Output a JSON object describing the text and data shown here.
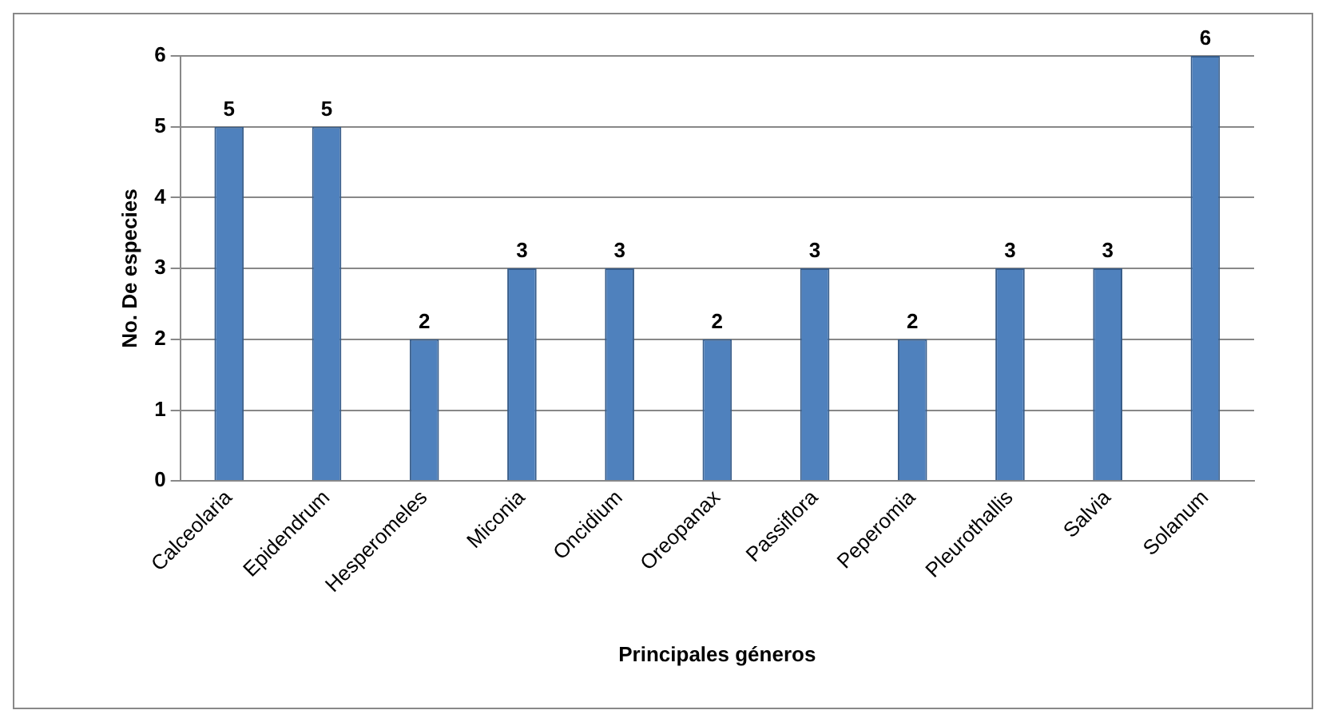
{
  "chart_data": {
    "type": "bar",
    "xlabel": "Principales géneros",
    "ylabel": "No. De especies",
    "categories": [
      "Calceolaria",
      "Epidendrum",
      "Hesperomeles",
      "Miconia",
      "Oncidium",
      "Oreopanax",
      "Passiflora",
      "Peperomia",
      "Pleurothallis",
      "Salvia",
      "Solanum"
    ],
    "values": [
      5,
      5,
      2,
      3,
      3,
      2,
      3,
      2,
      3,
      3,
      6
    ],
    "color": "#4f81bd",
    "ylim": [
      0,
      6
    ],
    "yticks": [
      0,
      1,
      2,
      3,
      4,
      5,
      6
    ],
    "grid": "y",
    "data_labels": true,
    "legend": false
  }
}
